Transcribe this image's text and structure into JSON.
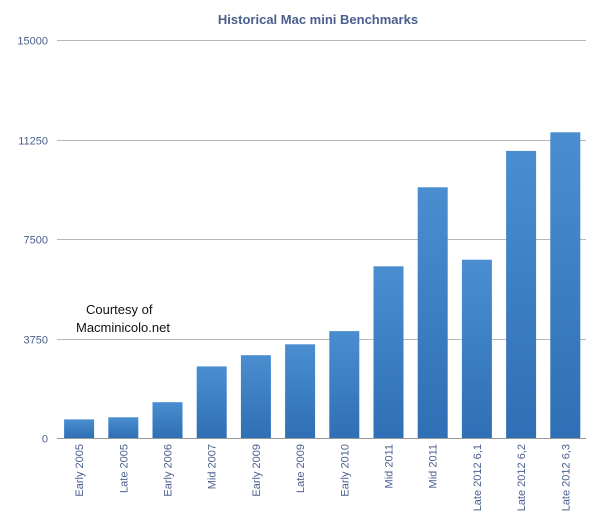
{
  "chart_data": {
    "type": "bar",
    "title": "Historical Mac mini Benchmarks",
    "xlabel": "",
    "ylabel": "",
    "ylim": [
      0,
      15000
    ],
    "yticks": [
      0,
      3750,
      7500,
      11250,
      15000
    ],
    "ytick_labels": [
      "0",
      "3750",
      "7500",
      "11250",
      "15000"
    ],
    "grid": true,
    "categories": [
      "Early 2005",
      "Late 2005",
      "Early 2006",
      "Mid 2007",
      "Early 2009",
      "Late 2009",
      "Early 2010",
      "Mid 2011",
      "Mid 2011",
      "Late 2012 6,1",
      "Late 2012 6,2",
      "Late 2012 6,3"
    ],
    "values": [
      700,
      780,
      1350,
      2700,
      3120,
      3530,
      4030,
      6470,
      9450,
      6720,
      10820,
      11520
    ],
    "annotation": {
      "line1": "Courtesy of",
      "line2": "Macminicolo.net"
    },
    "colors": {
      "bar_top": "#4a8ed0",
      "bar_bottom": "#2f6fb5",
      "title": "#4a5f8e",
      "ticks": "#4a5f8e"
    }
  }
}
